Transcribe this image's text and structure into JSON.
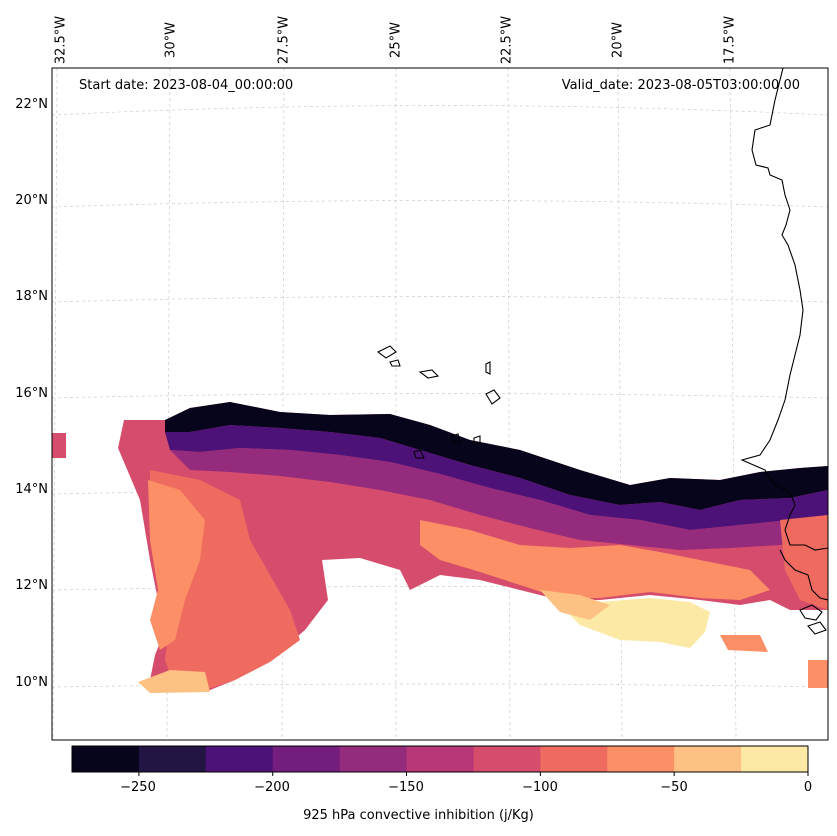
{
  "map": {
    "start_label": "Start date: 2023-08-04_00:00:00",
    "valid_label": "Valid_date: 2023-08-05T03:00:00.00",
    "longitude_labels": [
      "32.5°W",
      "30°W",
      "27.5°W",
      "25°W",
      "22.5°W",
      "20°W",
      "17.5°W"
    ],
    "latitude_labels": [
      "22°N",
      "20°N",
      "18°N",
      "16°N",
      "14°N",
      "12°N",
      "10°N"
    ],
    "field": "925 hPa convective inhibition",
    "units": "j/Kg",
    "region": "Eastern tropical Atlantic, Cape Verde islands and West African coast"
  },
  "colorbar": {
    "label": "925 hPa convective inhibition (j/Kg)",
    "min": -275,
    "max": 0,
    "levels": [
      -275,
      -250,
      -225,
      -200,
      -175,
      -150,
      -125,
      -100,
      -75,
      -50,
      -25,
      0
    ],
    "colors": [
      "#06051b",
      "#221544",
      "#4d1277",
      "#731d7f",
      "#942b7d",
      "#b73779",
      "#d54c6c",
      "#ef6b5f",
      "#fc8f65",
      "#fec184",
      "#fde9a6"
    ],
    "tick_labels": [
      "−250",
      "−200",
      "−150",
      "−100",
      "−50",
      "0"
    ],
    "tick_values": [
      -250,
      -200,
      -150,
      -100,
      -50,
      0
    ]
  }
}
